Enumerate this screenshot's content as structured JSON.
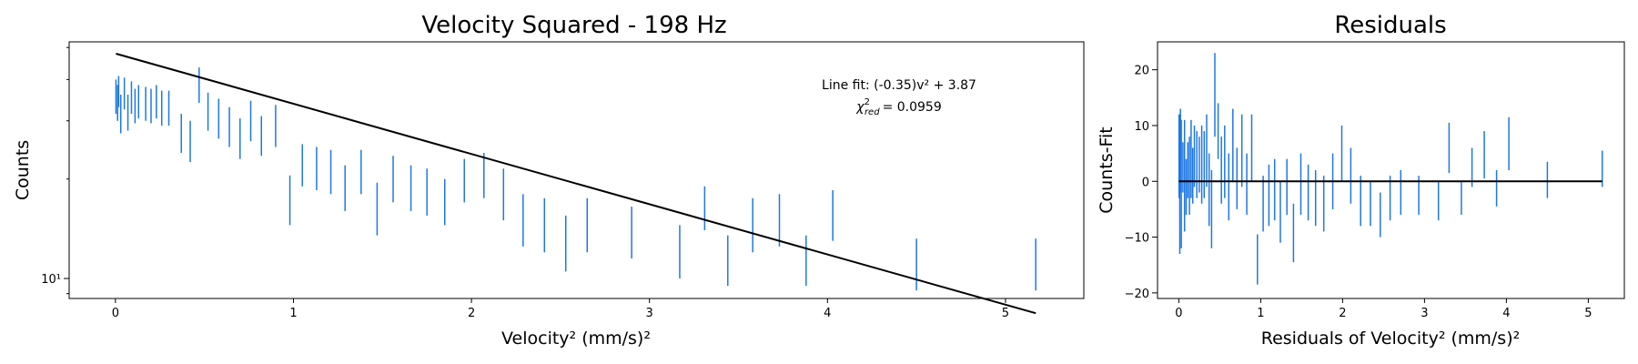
{
  "colors": {
    "errorbar": "#1f77e4",
    "fit": "#000000",
    "axes": "#000000"
  },
  "chart_data": [
    {
      "type": "errorbar-line",
      "title": "Velocity Squared - 198  Hz",
      "xlabel": "Velocity² (mm/s)²",
      "ylabel": "Counts",
      "yscale": "log",
      "xlim": [
        -0.26,
        5.44
      ],
      "ylim": [
        8.7,
        52
      ],
      "xticks": [
        0,
        1,
        2,
        3,
        4,
        5
      ],
      "xtick_labels": [
        "0",
        "1",
        "2",
        "3",
        "4",
        "5"
      ],
      "ytick_label": "10¹",
      "ytick_value": 10,
      "fit": {
        "label": "Line fit: (-0.35)v² + 3.87",
        "intercept": 3.87,
        "slope": -0.35
      },
      "chi": {
        "base": "χ",
        "sup": "2",
        "sub": "red",
        "value": "= 0.0959"
      },
      "data": [
        [
          0.003,
          31.5,
          40.0
        ],
        [
          0.012,
          30.0,
          38.5
        ],
        [
          0.018,
          33.0,
          41.0
        ],
        [
          0.03,
          27.5,
          36.0
        ],
        [
          0.05,
          32.5,
          40.5
        ],
        [
          0.07,
          28.0,
          36.0
        ],
        [
          0.09,
          31.5,
          39.5
        ],
        [
          0.11,
          29.5,
          37.5
        ],
        [
          0.13,
          30.5,
          38.5
        ],
        [
          0.17,
          30.0,
          38.0
        ],
        [
          0.2,
          29.5,
          37.5
        ],
        [
          0.23,
          30.5,
          38.5
        ],
        [
          0.26,
          29.0,
          37.0
        ],
        [
          0.3,
          29.0,
          37.0
        ],
        [
          0.37,
          24.0,
          31.5
        ],
        [
          0.42,
          22.5,
          30.0
        ],
        [
          0.47,
          34.0,
          43.5
        ],
        [
          0.52,
          28.0,
          36.5
        ],
        [
          0.58,
          26.5,
          35.0
        ],
        [
          0.64,
          25.0,
          33.0
        ],
        [
          0.7,
          23.0,
          30.5
        ],
        [
          0.76,
          26.0,
          34.5
        ],
        [
          0.82,
          23.5,
          31.0
        ],
        [
          0.9,
          25.0,
          33.5
        ],
        [
          0.98,
          14.5,
          20.5
        ],
        [
          1.05,
          19.0,
          25.5
        ],
        [
          1.13,
          18.5,
          25.0
        ],
        [
          1.21,
          18.0,
          24.5
        ],
        [
          1.29,
          16.0,
          22.0
        ],
        [
          1.38,
          18.0,
          24.5
        ],
        [
          1.47,
          13.5,
          19.5
        ],
        [
          1.56,
          17.0,
          23.5
        ],
        [
          1.66,
          16.0,
          22.0
        ],
        [
          1.75,
          15.5,
          21.5
        ],
        [
          1.85,
          14.5,
          20.0
        ],
        [
          1.96,
          17.0,
          23.0
        ],
        [
          2.07,
          17.5,
          24.0
        ],
        [
          2.18,
          15.0,
          21.5
        ],
        [
          2.29,
          12.5,
          18.0
        ],
        [
          2.41,
          12.0,
          17.5
        ],
        [
          2.53,
          10.5,
          15.5
        ],
        [
          2.65,
          12.0,
          17.5
        ],
        [
          2.9,
          11.5,
          16.5
        ],
        [
          3.17,
          10.0,
          14.5
        ],
        [
          3.31,
          14.0,
          19.0
        ],
        [
          3.44,
          9.5,
          13.5
        ],
        [
          3.58,
          12.0,
          17.5
        ],
        [
          3.73,
          12.5,
          18.0
        ],
        [
          3.88,
          9.5,
          13.5
        ],
        [
          4.03,
          13.0,
          18.5
        ],
        [
          4.5,
          9.2,
          13.2
        ],
        [
          5.17,
          9.2,
          13.2
        ]
      ]
    },
    {
      "type": "errorbar-line",
      "title": "Residuals",
      "xlabel": "Residuals of Velocity² (mm/s)²",
      "ylabel": "Counts-Fit",
      "xlim": [
        -0.26,
        5.44
      ],
      "ylim": [
        -21,
        25
      ],
      "xticks": [
        0,
        1,
        2,
        3,
        4,
        5
      ],
      "xtick_labels": [
        "0",
        "1",
        "2",
        "3",
        "4",
        "5"
      ],
      "yticks": [
        -20,
        -10,
        0,
        10,
        20
      ],
      "ytick_labels": [
        "−20",
        "−10",
        "0",
        "10",
        "20"
      ],
      "zero_line": [
        0,
        5.17
      ],
      "data": [
        [
          0.003,
          -3,
          12
        ],
        [
          0.012,
          -13,
          12
        ],
        [
          0.02,
          -2,
          13
        ],
        [
          0.03,
          -12,
          11
        ],
        [
          0.05,
          -2,
          7
        ],
        [
          0.07,
          -9,
          11
        ],
        [
          0.09,
          -6,
          4
        ],
        [
          0.11,
          -3,
          7
        ],
        [
          0.13,
          -6,
          8
        ],
        [
          0.15,
          -3,
          11
        ],
        [
          0.17,
          -4,
          6
        ],
        [
          0.19,
          -1,
          10
        ],
        [
          0.22,
          -3,
          9
        ],
        [
          0.25,
          -2,
          8
        ],
        [
          0.28,
          -4,
          10
        ],
        [
          0.31,
          -3,
          9
        ],
        [
          0.34,
          -1,
          12
        ],
        [
          0.37,
          -8,
          5
        ],
        [
          0.4,
          -12,
          2
        ],
        [
          0.44,
          8,
          23
        ],
        [
          0.48,
          4,
          14
        ],
        [
          0.52,
          -4,
          8
        ],
        [
          0.56,
          -3,
          10
        ],
        [
          0.61,
          -7,
          5
        ],
        [
          0.66,
          0,
          13
        ],
        [
          0.71,
          -5,
          6
        ],
        [
          0.77,
          -1,
          12
        ],
        [
          0.83,
          -6,
          5
        ],
        [
          0.89,
          0,
          12
        ],
        [
          0.96,
          -18.5,
          -9.5
        ],
        [
          1.03,
          -9,
          1
        ],
        [
          1.1,
          -8,
          3
        ],
        [
          1.17,
          -7,
          4
        ],
        [
          1.24,
          -11,
          0
        ],
        [
          1.32,
          -6,
          4
        ],
        [
          1.4,
          -14.5,
          -4
        ],
        [
          1.49,
          -6,
          5
        ],
        [
          1.58,
          -7,
          3
        ],
        [
          1.67,
          -8,
          2
        ],
        [
          1.77,
          -9,
          1
        ],
        [
          1.88,
          -5,
          5
        ],
        [
          1.99,
          0,
          10
        ],
        [
          2.1,
          -4,
          6
        ],
        [
          2.22,
          -8,
          1
        ],
        [
          2.34,
          -8,
          0
        ],
        [
          2.46,
          -10,
          -2
        ],
        [
          2.58,
          -7,
          1
        ],
        [
          2.71,
          -6,
          2
        ],
        [
          2.93,
          -6,
          1
        ],
        [
          3.17,
          -7,
          0
        ],
        [
          3.3,
          1.5,
          10.5
        ],
        [
          3.45,
          -6,
          0
        ],
        [
          3.58,
          -1,
          6
        ],
        [
          3.73,
          0.5,
          9
        ],
        [
          3.88,
          -4.5,
          2
        ],
        [
          4.03,
          2,
          11.5
        ],
        [
          4.5,
          -3,
          3.5
        ],
        [
          5.17,
          -1,
          5.5
        ]
      ]
    }
  ]
}
